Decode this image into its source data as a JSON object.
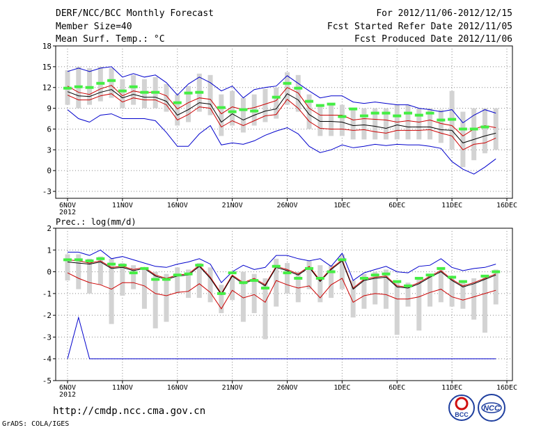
{
  "header": {
    "title": "DERF/NCC/BCC Monthly Forecast",
    "member_size": "Member Size=40",
    "variable": "Mean Surf. Temp.: °C",
    "period": "For 2012/11/06-2012/12/15",
    "fcst_started": "Fcst Started Refer Date 2012/11/05",
    "fcst_produced": "Fcst Produced Date 2012/11/06"
  },
  "footer": {
    "url": "http://cmdp.ncc.cma.gov.cn",
    "credit": "GrADS: COLA/IGES",
    "logo_left_text": "BCC",
    "logo_right_text": "NCC"
  },
  "colors": {
    "ensemble_max": "#0000cc",
    "ensemble_min": "#0000cc",
    "spread": "#cc0000",
    "mean": "#000000",
    "observed": "#44ee44",
    "box": "#d3d3d3",
    "grid": "#888888"
  },
  "chart_data": [
    {
      "type": "line",
      "name": "temperature",
      "title": "Mean Surf. Temp.: °C",
      "ylim": [
        -4,
        18
      ],
      "yticks": [
        -3,
        0,
        3,
        6,
        9,
        12,
        15,
        18
      ],
      "xlim": [
        0,
        40
      ],
      "xticks": [
        {
          "x": 0,
          "label": "6NOV",
          "sub": "2012"
        },
        {
          "x": 5,
          "label": "11NOV"
        },
        {
          "x": 10,
          "label": "16NOV"
        },
        {
          "x": 15,
          "label": "21NOV"
        },
        {
          "x": 20,
          "label": "26NOV"
        },
        {
          "x": 25,
          "label": "1DEC"
        },
        {
          "x": 30,
          "label": "6DEC"
        },
        {
          "x": 35,
          "label": "11DEC"
        },
        {
          "x": 40,
          "label": "16DEC"
        }
      ],
      "x": [
        0,
        1,
        2,
        3,
        4,
        5,
        6,
        7,
        8,
        9,
        10,
        11,
        12,
        13,
        14,
        15,
        16,
        17,
        18,
        19,
        20,
        21,
        22,
        23,
        24,
        25,
        26,
        27,
        28,
        29,
        30,
        31,
        32,
        33,
        34,
        35,
        36,
        37,
        38,
        39
      ],
      "series": [
        {
          "name": "max",
          "values": [
            14.3,
            14.8,
            14.3,
            14.8,
            15.0,
            13.5,
            14.0,
            13.5,
            13.8,
            12.7,
            10.9,
            12.5,
            13.5,
            12.7,
            11.5,
            12.2,
            10.5,
            11.7,
            12.0,
            12.2,
            13.7,
            12.6,
            11.5,
            10.5,
            10.8,
            10.8,
            9.9,
            9.7,
            9.9,
            9.7,
            9.5,
            9.5,
            9.0,
            8.8,
            8.5,
            8.8,
            6.9,
            8.0,
            8.8,
            8.3
          ]
        },
        {
          "name": "upper",
          "values": [
            12.2,
            11.3,
            11.0,
            11.8,
            12.3,
            10.8,
            11.5,
            11.2,
            11.4,
            10.8,
            8.9,
            9.8,
            10.5,
            10.3,
            8.2,
            9.2,
            8.8,
            9.1,
            9.6,
            10.1,
            12.0,
            11.2,
            9.0,
            8.0,
            8.0,
            8.0,
            7.3,
            7.5,
            7.4,
            7.3,
            7.0,
            7.2,
            7.0,
            7.3,
            6.8,
            6.5,
            5.0,
            6.0,
            6.5,
            6.2
          ]
        },
        {
          "name": "mean",
          "values": [
            11.4,
            10.8,
            10.7,
            11.3,
            11.7,
            10.5,
            11.0,
            10.6,
            10.6,
            10.0,
            8.0,
            8.8,
            9.8,
            9.6,
            7.0,
            8.2,
            7.3,
            8.0,
            8.6,
            8.9,
            11.1,
            10.2,
            8.1,
            7.1,
            7.1,
            7.0,
            6.5,
            6.6,
            6.4,
            6.1,
            6.6,
            6.3,
            6.3,
            6.3,
            5.9,
            5.8,
            4.0,
            4.5,
            5.0,
            5.4
          ]
        },
        {
          "name": "lower",
          "values": [
            10.9,
            10.2,
            10.2,
            10.8,
            11.1,
            9.9,
            10.5,
            10.2,
            10.2,
            9.5,
            7.3,
            8.1,
            9.2,
            9.0,
            6.3,
            7.2,
            6.5,
            7.2,
            7.9,
            8.1,
            10.3,
            9.0,
            7.1,
            6.1,
            6.0,
            6.0,
            5.8,
            5.9,
            5.6,
            5.4,
            5.8,
            5.8,
            5.8,
            5.9,
            5.4,
            5.0,
            3.0,
            3.8,
            4.0,
            4.7
          ]
        },
        {
          "name": "min",
          "values": [
            8.8,
            7.5,
            7.0,
            8.0,
            8.2,
            7.5,
            7.5,
            7.5,
            7.2,
            5.5,
            3.5,
            3.5,
            5.3,
            6.5,
            3.7,
            4.0,
            3.8,
            4.3,
            5.1,
            5.7,
            6.2,
            5.3,
            3.5,
            2.6,
            3.0,
            3.7,
            3.3,
            3.5,
            3.8,
            3.6,
            3.8,
            3.7,
            3.7,
            3.5,
            3.2,
            1.3,
            0.2,
            -0.5,
            0.5,
            1.7
          ]
        },
        {
          "name": "observed",
          "values": [
            11.9,
            12.1,
            12.0,
            12.6,
            13.0,
            11.5,
            12.1,
            11.3,
            11.3,
            null,
            9.8,
            11.2,
            11.3,
            null,
            9.1,
            8.5,
            8.8,
            8.6,
            null,
            10.6,
            12.6,
            11.9,
            10.0,
            9.4,
            9.6,
            7.8,
            8.9,
            7.9,
            8.3,
            8.3,
            7.9,
            8.3,
            8.0,
            8.3,
            7.3,
            7.4,
            6.0,
            6.0,
            6.3,
            null
          ]
        }
      ],
      "boxes": [
        [
          9.5,
          14.5
        ],
        [
          9.0,
          15.0
        ],
        [
          9.5,
          14.8
        ],
        [
          10.0,
          15.0
        ],
        [
          10.5,
          14.8
        ],
        [
          9.0,
          13.2
        ],
        [
          9.5,
          13.8
        ],
        [
          9.0,
          13.2
        ],
        [
          9.0,
          13.5
        ],
        [
          8.5,
          12.5
        ],
        [
          6.5,
          11.0
        ],
        [
          7.0,
          12.2
        ],
        [
          8.5,
          14.0
        ],
        [
          8.0,
          13.8
        ],
        [
          5.0,
          11.0
        ],
        [
          6.5,
          11.5
        ],
        [
          5.5,
          10.5
        ],
        [
          6.5,
          11.0
        ],
        [
          7.0,
          11.8
        ],
        [
          7.5,
          12.0
        ],
        [
          9.5,
          14.2
        ],
        [
          8.5,
          13.8
        ],
        [
          6.0,
          11.0
        ],
        [
          5.0,
          9.5
        ],
        [
          5.0,
          9.5
        ],
        [
          5.0,
          9.5
        ],
        [
          4.5,
          8.8
        ],
        [
          4.5,
          9.0
        ],
        [
          4.5,
          9.0
        ],
        [
          4.5,
          9.0
        ],
        [
          4.5,
          9.5
        ],
        [
          4.5,
          9.5
        ],
        [
          4.5,
          9.0
        ],
        [
          4.5,
          9.0
        ],
        [
          4.0,
          8.8
        ],
        [
          3.0,
          11.5
        ],
        [
          0.5,
          8.5
        ],
        [
          1.5,
          9.0
        ],
        [
          2.5,
          9.0
        ],
        [
          3.0,
          9.0
        ]
      ]
    },
    {
      "type": "line",
      "name": "precipitation",
      "title": "Prec.: log(mm/d)",
      "ylim": [
        -5,
        2
      ],
      "yticks": [
        -5,
        -4,
        -3,
        -2,
        -1,
        0,
        1,
        2
      ],
      "xlim": [
        0,
        40
      ],
      "xticks": [
        {
          "x": 0,
          "label": "6NOV",
          "sub": "2012"
        },
        {
          "x": 5,
          "label": "11NOV"
        },
        {
          "x": 10,
          "label": "16NOV"
        },
        {
          "x": 15,
          "label": "21NOV"
        },
        {
          "x": 20,
          "label": "26NOV"
        },
        {
          "x": 25,
          "label": "1DEC"
        },
        {
          "x": 30,
          "label": "6DEC"
        },
        {
          "x": 35,
          "label": "11DEC"
        },
        {
          "x": 40,
          "label": "16DEC"
        }
      ],
      "x": [
        0,
        1,
        2,
        3,
        4,
        5,
        6,
        7,
        8,
        9,
        10,
        11,
        12,
        13,
        14,
        15,
        16,
        17,
        18,
        19,
        20,
        21,
        22,
        23,
        24,
        25,
        26,
        27,
        28,
        29,
        30,
        31,
        32,
        33,
        34,
        35,
        36,
        37,
        38,
        39
      ],
      "series": [
        {
          "name": "max",
          "values": [
            0.9,
            0.9,
            0.75,
            1.0,
            0.6,
            0.7,
            0.55,
            0.4,
            0.25,
            0.2,
            0.35,
            0.45,
            0.6,
            0.35,
            -0.5,
            0.0,
            0.3,
            0.1,
            0.2,
            0.75,
            0.75,
            0.6,
            0.5,
            0.6,
            0.25,
            0.85,
            -0.4,
            -0.05,
            0.1,
            0.25,
            0.0,
            -0.05,
            0.25,
            0.3,
            0.6,
            0.2,
            0.05,
            0.15,
            0.2,
            0.35
          ]
        },
        {
          "name": "upper",
          "values": [
            0.55,
            0.5,
            0.4,
            0.5,
            0.2,
            0.25,
            0.1,
            0.2,
            -0.15,
            -0.3,
            -0.15,
            -0.1,
            0.3,
            -0.25,
            -1.0,
            -0.15,
            -0.5,
            -0.3,
            -0.6,
            0.25,
            0.1,
            -0.1,
            0.25,
            -0.4,
            0.15,
            0.55,
            -0.75,
            -0.35,
            -0.25,
            -0.2,
            -0.65,
            -0.7,
            -0.5,
            -0.2,
            0.05,
            -0.35,
            -0.65,
            -0.5,
            -0.3,
            -0.1
          ]
        },
        {
          "name": "mean",
          "values": [
            0.45,
            0.4,
            0.35,
            0.45,
            0.15,
            0.2,
            0.05,
            0.15,
            -0.2,
            -0.35,
            -0.2,
            -0.15,
            0.25,
            -0.3,
            -1.05,
            -0.2,
            -0.55,
            -0.35,
            -0.65,
            0.2,
            0.05,
            -0.15,
            0.2,
            -0.45,
            0.1,
            0.5,
            -0.8,
            -0.4,
            -0.3,
            -0.25,
            -0.7,
            -0.75,
            -0.55,
            -0.25,
            0.0,
            -0.4,
            -0.7,
            -0.55,
            -0.35,
            -0.15
          ]
        },
        {
          "name": "lower",
          "values": [
            -0.05,
            -0.3,
            -0.5,
            -0.6,
            -0.8,
            -0.5,
            -0.5,
            -0.65,
            -1.0,
            -1.1,
            -0.95,
            -0.9,
            -0.55,
            -0.95,
            -1.7,
            -0.85,
            -1.2,
            -1.05,
            -1.4,
            -0.4,
            -0.6,
            -0.75,
            -0.65,
            -1.2,
            -0.6,
            -0.3,
            -1.4,
            -1.1,
            -1.0,
            -1.05,
            -1.25,
            -1.25,
            -1.15,
            -0.95,
            -0.8,
            -1.15,
            -1.3,
            -1.15,
            -1.0,
            -0.85
          ]
        },
        {
          "name": "min",
          "values": [
            -4.0,
            -2.1,
            -4.0,
            -4.0,
            -4.0,
            -4.0,
            -4.0,
            -4.0,
            -4.0,
            -4.0,
            -4.0,
            -4.0,
            -4.0,
            -4.0,
            -4.0,
            -4.0,
            -4.0,
            -4.0,
            -4.0,
            -4.0,
            -4.0,
            -4.0,
            -4.0,
            -4.0,
            -4.0,
            -4.0,
            -4.0,
            -4.0,
            -4.0,
            -4.0,
            -4.0,
            -4.0,
            -4.0,
            -4.0,
            -4.0,
            -4.0,
            -4.0,
            -4.0,
            -4.0,
            -4.0
          ]
        },
        {
          "name": "observed",
          "values": [
            0.55,
            0.55,
            0.5,
            0.6,
            0.35,
            0.3,
            -0.05,
            0.15,
            -0.35,
            -0.35,
            -0.15,
            -0.1,
            0.3,
            null,
            -1.0,
            -0.05,
            -0.5,
            -0.4,
            -0.75,
            0.25,
            -0.05,
            -0.3,
            0.15,
            -0.3,
            0.0,
            0.55,
            null,
            -0.3,
            -0.15,
            -0.1,
            -0.45,
            -0.65,
            -0.3,
            -0.15,
            0.15,
            -0.25,
            -0.45,
            null,
            -0.2,
            0.0
          ]
        }
      ],
      "boxes": [
        [
          -0.4,
          0.8
        ],
        [
          -0.8,
          0.8
        ],
        [
          -1.0,
          0.6
        ],
        [
          -0.6,
          0.7
        ],
        [
          -2.4,
          0.6
        ],
        [
          -1.1,
          0.4
        ],
        [
          -0.8,
          0.3
        ],
        [
          -1.7,
          0.1
        ],
        [
          -2.6,
          0.0
        ],
        [
          -2.3,
          -0.1
        ],
        [
          -1.0,
          0.2
        ],
        [
          -1.2,
          0.1
        ],
        [
          -1.2,
          0.4
        ],
        [
          -1.4,
          0.2
        ],
        [
          -1.9,
          -0.6
        ],
        [
          -1.3,
          -0.2
        ],
        [
          -2.3,
          0.0
        ],
        [
          -1.9,
          -0.1
        ],
        [
          -3.1,
          -0.3
        ],
        [
          -1.6,
          0.6
        ],
        [
          -1.0,
          0.4
        ],
        [
          -1.4,
          0.0
        ],
        [
          -0.8,
          0.5
        ],
        [
          -1.4,
          0.3
        ],
        [
          -1.2,
          0.3
        ],
        [
          -0.8,
          0.8
        ],
        [
          -2.1,
          -0.4
        ],
        [
          -1.7,
          -0.1
        ],
        [
          -1.5,
          0.0
        ],
        [
          -1.7,
          0.1
        ],
        [
          -2.9,
          -0.4
        ],
        [
          -1.6,
          -0.5
        ],
        [
          -2.7,
          -0.3
        ],
        [
          -1.6,
          -0.1
        ],
        [
          -1.4,
          0.2
        ],
        [
          -1.6,
          -0.2
        ],
        [
          -1.7,
          -0.4
        ],
        [
          -2.2,
          -0.3
        ],
        [
          -2.8,
          -0.2
        ],
        [
          -1.5,
          0.1
        ]
      ]
    }
  ]
}
